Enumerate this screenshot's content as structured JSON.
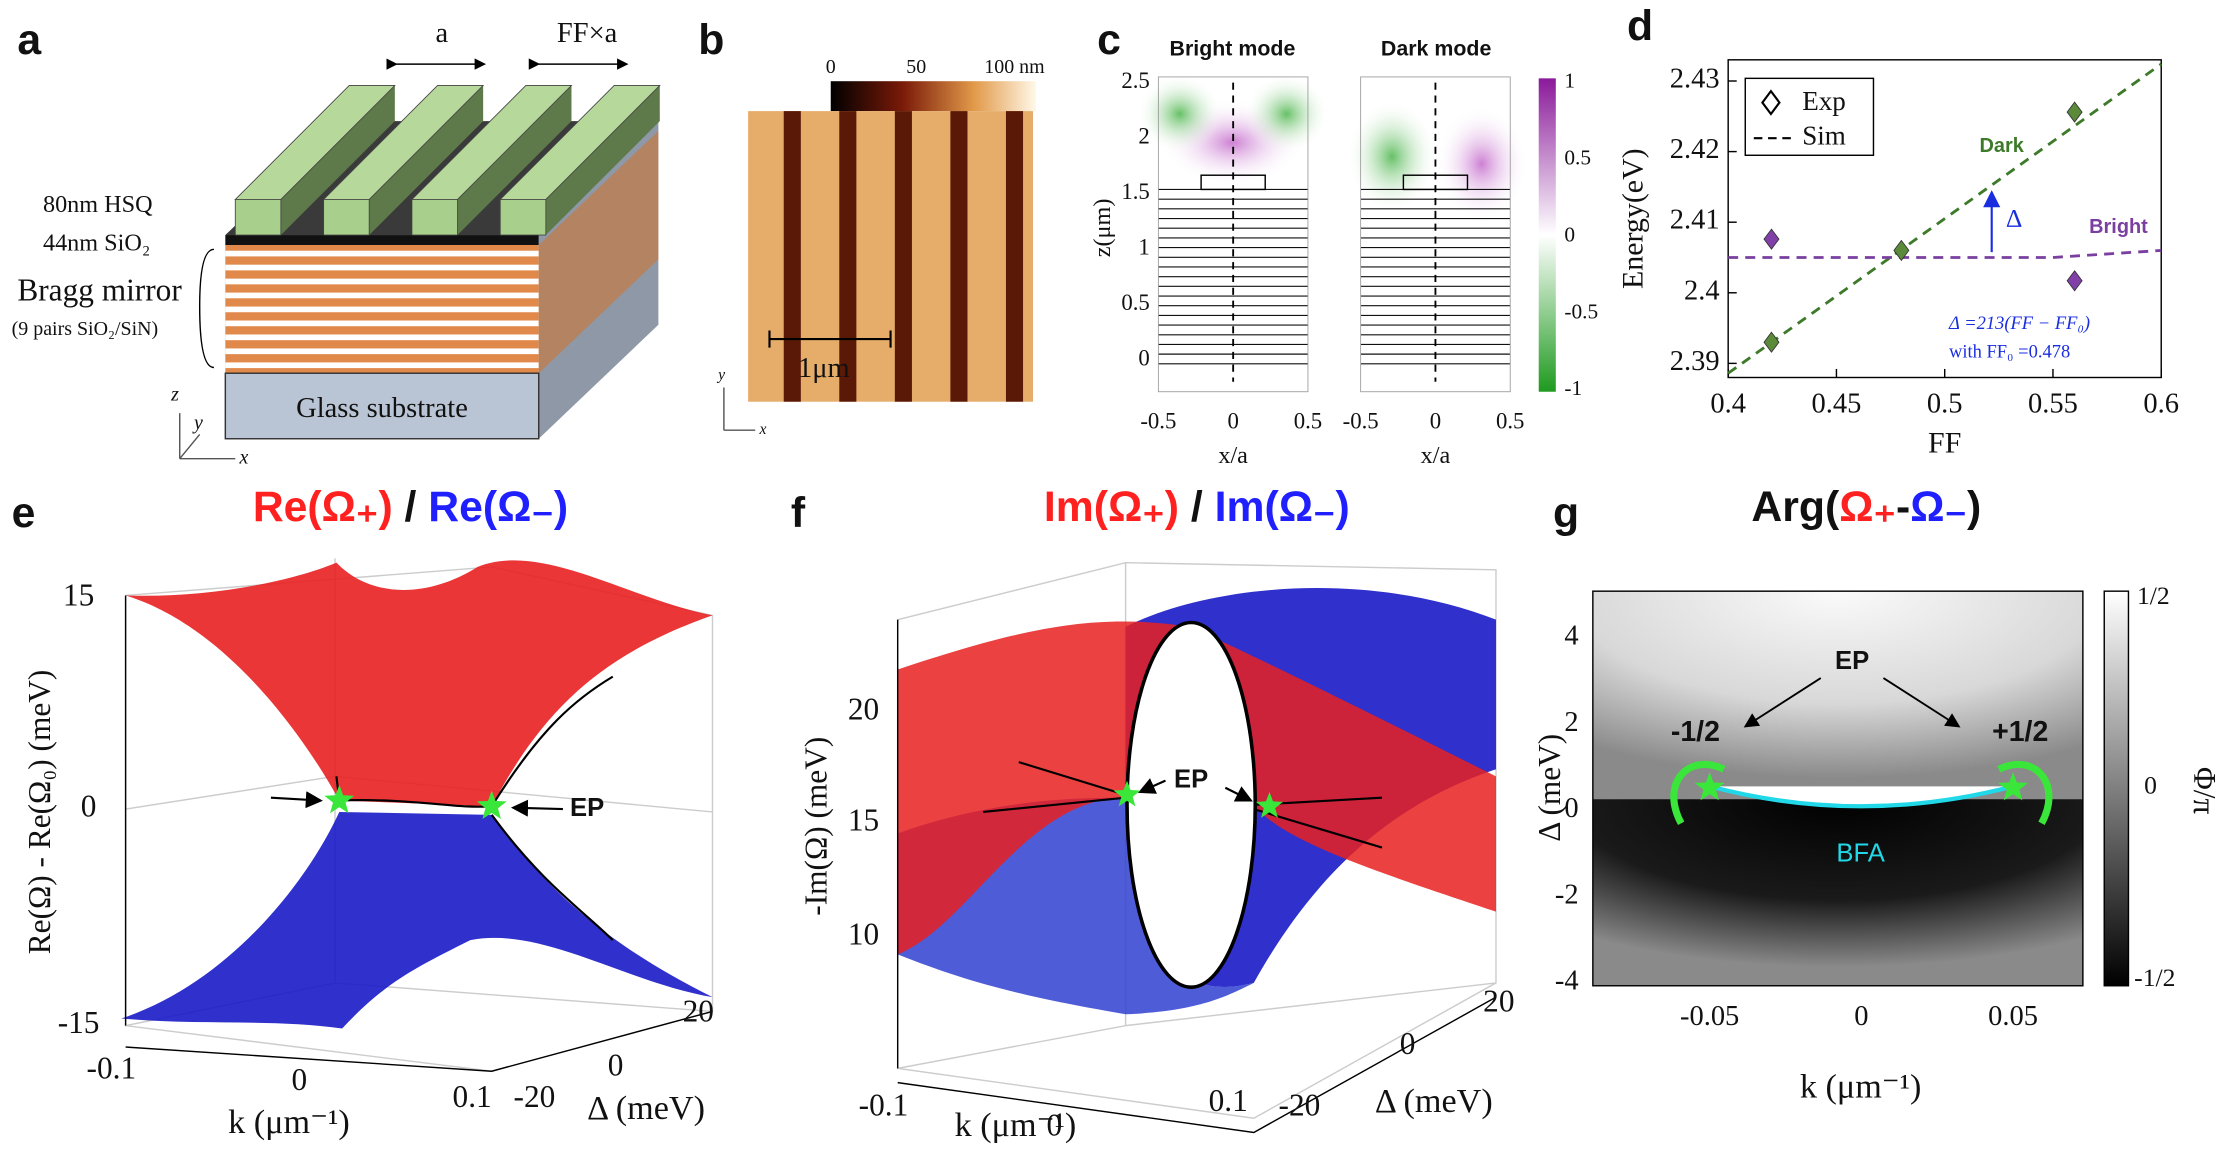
{
  "chart_data": {
    "type": "scatter",
    "x_label": "FF",
    "y_label": "Energy(eV)",
    "xlim": [
      0.4,
      0.6
    ],
    "ylim": [
      2.388,
      2.433
    ],
    "xticks": [
      0.4,
      0.45,
      0.5,
      0.55,
      0.6
    ],
    "yticks": [
      2.39,
      2.4,
      2.41,
      2.42,
      2.43
    ],
    "legend": "upper left",
    "label": "d",
    "series": [
      {
        "name": "Exp",
        "marker": "diamond",
        "x": [
          0.42,
          0.48,
          0.56,
          0.42,
          0.56
        ],
        "values": [
          2.393,
          2.406,
          2.4256,
          2.4076,
          2.4017
        ],
        "colors": [
          "#5a8a3a",
          "#5a8a3a",
          "#5a8a3a",
          "#8040a8",
          "#8040a8"
        ]
      },
      {
        "name": "Sim",
        "dash": true,
        "lines": [
          {
            "label": "Dark",
            "color": "#3d7a2a",
            "x": [
              0.4,
              0.6
            ],
            "values": [
              2.3886,
              2.4324
            ]
          },
          {
            "label": "Bright",
            "color": "#7a3fa0",
            "x": [
              0.4,
              0.5,
              0.55,
              0.6
            ],
            "values": [
              2.405,
              2.405,
              2.405,
              2.406
            ]
          }
        ]
      }
    ],
    "annotations": {
      "delta": "Δ",
      "formula": "Δ =213(FF − FF₀)",
      "formula2": "with FF₀ =0.478",
      "color": "#1a2ee0"
    }
  },
  "figure": {
    "a": {
      "label": "a",
      "period": "a",
      "slit": "FF×a",
      "hsq": "80nm HSQ",
      "sio2": "44nm SiO₂",
      "bragg": "Bragg mirror",
      "bragg_detail": "(9 pairs SiO₂/SiN)",
      "substrate": "Glass substrate",
      "axes": [
        "z",
        "y",
        "x"
      ]
    },
    "b": {
      "label": "b",
      "colorbar_ticks": [
        "0",
        "50",
        "100 nm"
      ],
      "scale_bar": "1μm",
      "axes": [
        "y",
        "x"
      ]
    },
    "c": {
      "label": "c",
      "titles": [
        "Bright mode",
        "Dark mode"
      ],
      "y_label": "z(μm)",
      "yticks": [
        "2.5",
        "2",
        "1.5",
        "1",
        "0.5",
        "0"
      ],
      "xticks": [
        "-0.5",
        "0",
        "0.5"
      ],
      "x_label": "x/a",
      "colorbar_ticks": [
        "1",
        "0.5",
        "0",
        "-0.5",
        "-1"
      ]
    },
    "e": {
      "label": "e",
      "title": [
        "Re(Ω₊)",
        " / ",
        "Re(Ω₋)"
      ],
      "y_label": "Re(Ω) - Re(Ω₀) (meV)",
      "zticks": [
        "15",
        "0",
        "-15"
      ],
      "kticks": [
        "-0.1",
        "0",
        "0.1"
      ],
      "dticks": [
        "-20",
        "0",
        "20"
      ],
      "k_label": "k (μm⁻¹)",
      "d_label": "Δ (meV)",
      "ep": "EP"
    },
    "f": {
      "label": "f",
      "title": [
        "Im(Ω₊)",
        " / ",
        "Im(Ω₋)"
      ],
      "y_label": "-Im(Ω) (meV)",
      "zticks": [
        "20",
        "15",
        "10"
      ],
      "kticks": [
        "-0.1",
        "0",
        "0.1"
      ],
      "dticks": [
        "-20",
        "0",
        "20"
      ],
      "k_label": "k (μm⁻¹)",
      "d_label": "Δ (meV)",
      "ep": "EP"
    },
    "g": {
      "label": "g",
      "title": [
        "Arg(",
        "Ω₊",
        "-",
        "Ω₋",
        ")"
      ],
      "y_label": "Δ (meV)",
      "yticks": [
        "4",
        "2",
        "0",
        "-2",
        "-4"
      ],
      "xticks": [
        "-0.05",
        "0",
        "0.05"
      ],
      "x_label": "k (μm⁻¹)",
      "colorbar_ticks": [
        "1/2",
        "0",
        "-1/2"
      ],
      "colorbar_label": "Φ/π",
      "ep": "EP",
      "left": "-1/2",
      "right": "+1/2",
      "bfa": "BFA"
    }
  }
}
